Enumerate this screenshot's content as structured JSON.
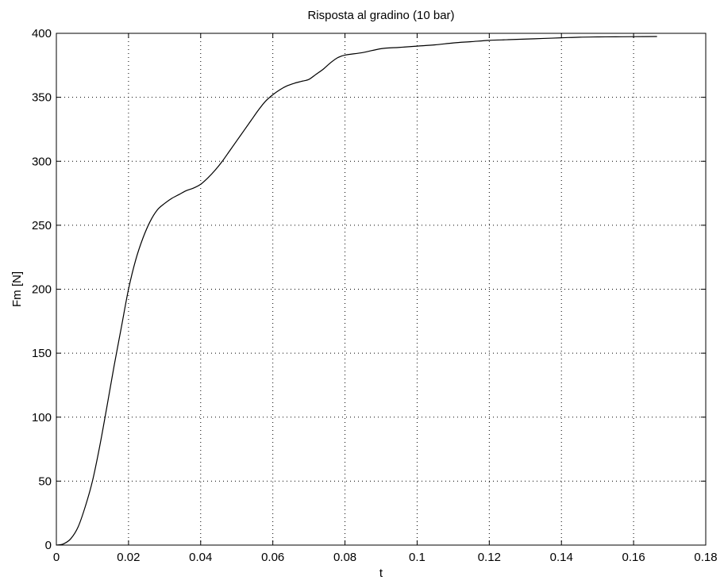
{
  "chart_data": {
    "type": "line",
    "title": "Risposta al gradino (10 bar)",
    "xlabel": "t",
    "ylabel": "Fm [N]",
    "xlim": [
      0,
      0.18
    ],
    "ylim": [
      0,
      400
    ],
    "grid": true,
    "xticks": [
      0,
      0.02,
      0.04,
      0.06,
      0.08,
      0.1,
      0.12,
      0.14,
      0.16,
      0.18
    ],
    "xtick_labels": [
      "0",
      "0.02",
      "0.04",
      "0.06",
      "0.08",
      "0.1",
      "0.12",
      "0.14",
      "0.16",
      "0.18"
    ],
    "yticks": [
      0,
      50,
      100,
      150,
      200,
      250,
      300,
      350,
      400
    ],
    "ytick_labels": [
      "0",
      "50",
      "100",
      "150",
      "200",
      "250",
      "300",
      "350",
      "400"
    ],
    "series": [
      {
        "color": "#000000",
        "x": [
          0,
          0.002,
          0.004,
          0.006,
          0.008,
          0.01,
          0.012,
          0.014,
          0.016,
          0.018,
          0.02,
          0.022,
          0.024,
          0.026,
          0.028,
          0.03,
          0.032,
          0.034,
          0.036,
          0.038,
          0.04,
          0.042,
          0.044,
          0.046,
          0.048,
          0.05,
          0.052,
          0.054,
          0.056,
          0.058,
          0.06,
          0.062,
          0.064,
          0.066,
          0.068,
          0.07,
          0.072,
          0.074,
          0.076,
          0.078,
          0.08,
          0.085,
          0.09,
          0.095,
          0.1,
          0.105,
          0.11,
          0.115,
          0.12,
          0.125,
          0.13,
          0.135,
          0.14,
          0.145,
          0.15,
          0.155,
          0.16,
          0.1665
        ],
        "y": [
          0,
          1,
          5,
          14,
          30,
          50,
          77,
          108,
          140,
          170,
          200,
          223,
          240,
          253,
          262,
          267,
          271,
          274,
          277,
          279,
          282,
          287,
          293,
          300,
          308,
          316,
          324,
          332,
          340,
          347,
          352,
          356,
          359,
          361,
          362.5,
          364,
          368,
          372,
          377,
          381,
          383,
          385,
          388,
          389,
          390,
          391,
          392.5,
          393.5,
          394.5,
          395,
          395.5,
          396,
          396.5,
          397,
          397.2,
          397.3,
          397.4,
          397.5
        ]
      }
    ]
  }
}
